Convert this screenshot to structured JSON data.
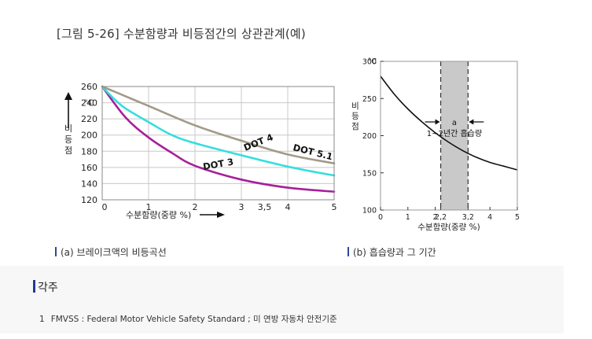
{
  "figure_title": "[그림 5-26] 수분함량과 비등점간의 상관관계(예)",
  "captions": {
    "left": "(a) 브레이크액의 비등곡선",
    "right": "(b) 흡습량과 그 기간"
  },
  "notes": {
    "heading": "각주",
    "items": [
      {
        "num": "1",
        "text": "FMVSS : Federal Motor Vehicle Safety Standard ; 미 연방 자동차 안전기준"
      }
    ]
  },
  "chart_data": [
    {
      "type": "line",
      "unit_label": "°C",
      "ylabel": "비등점",
      "xlabel": "수분함량(중량 %)",
      "xlim": [
        0,
        5
      ],
      "ylim": [
        120,
        260
      ],
      "x_ticks": [
        "0",
        "1",
        "2",
        "3",
        "3,5",
        "4",
        "5"
      ],
      "x_tick_values": [
        0,
        1,
        2,
        3,
        3.5,
        4,
        5
      ],
      "y_ticks": [
        120,
        140,
        160,
        180,
        200,
        220,
        240,
        260
      ],
      "grid": true,
      "series": [
        {
          "name": "DOT 3",
          "color": "#a6209a",
          "x": [
            0,
            0.5,
            1,
            1.5,
            2,
            3,
            4,
            5
          ],
          "y": [
            260,
            222,
            197,
            178,
            162,
            145,
            135,
            130
          ]
        },
        {
          "name": "DOT 4",
          "color": "#33dede",
          "x": [
            0,
            0.25,
            0.5,
            1,
            1.5,
            2,
            3,
            4,
            5
          ],
          "y": [
            260,
            245,
            233,
            216,
            200,
            190,
            175,
            161,
            150
          ]
        },
        {
          "name": "DOT 5.1",
          "color": "#a39a88",
          "x": [
            0,
            0.5,
            1,
            2,
            3,
            4,
            5
          ],
          "y": [
            260,
            248,
            236,
            212,
            193,
            176,
            165
          ]
        }
      ]
    },
    {
      "type": "line",
      "unit_label": "°C",
      "ylabel": "비등점",
      "xlabel": "수분함량(중량 %)",
      "xlim": [
        0,
        5
      ],
      "ylim": [
        100,
        300
      ],
      "x_ticks": [
        "0",
        "1",
        "2",
        "2,2",
        "3,2",
        "4",
        "5"
      ],
      "x_tick_values": [
        0,
        1,
        2,
        2.2,
        3.2,
        4,
        5
      ],
      "y_ticks": [
        100,
        150,
        200,
        250,
        300
      ],
      "grid": false,
      "band": {
        "x_start": 2.2,
        "x_end": 3.2,
        "label": "a",
        "sublabel": "1~2년간 흡습량"
      },
      "series": [
        {
          "color": "#111111",
          "x": [
            0,
            0.5,
            1,
            1.5,
            2,
            2.5,
            3,
            3.5,
            4,
            4.5,
            5
          ],
          "y": [
            280,
            256,
            236,
            219,
            204,
            191,
            180,
            171,
            164,
            159,
            154
          ]
        }
      ]
    }
  ]
}
